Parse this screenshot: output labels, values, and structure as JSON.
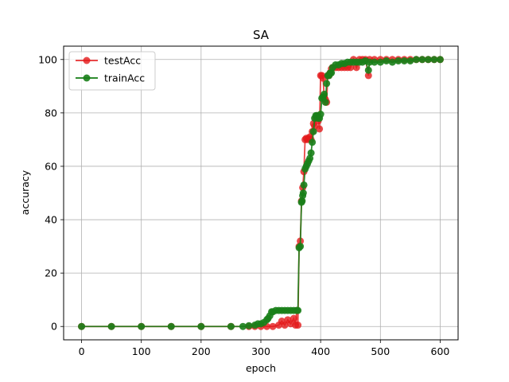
{
  "chart_data": {
    "type": "line",
    "title": "SA",
    "xlabel": "epoch",
    "ylabel": "accuracy",
    "xlim": [
      -30,
      630
    ],
    "ylim": [
      -5,
      105
    ],
    "xticks": [
      0,
      100,
      200,
      300,
      400,
      500,
      600
    ],
    "yticks": [
      0,
      20,
      40,
      60,
      80,
      100
    ],
    "grid": true,
    "legend_position": "top-left",
    "series": [
      {
        "name": "testAcc",
        "color": "#e41a1c",
        "alpha": 0.8,
        "marker": "circle",
        "points": [
          [
            0,
            0
          ],
          [
            50,
            0
          ],
          [
            100,
            0
          ],
          [
            150,
            0
          ],
          [
            200,
            0
          ],
          [
            250,
            0
          ],
          [
            280,
            0
          ],
          [
            290,
            0
          ],
          [
            300,
            0
          ],
          [
            310,
            0
          ],
          [
            320,
            0
          ],
          [
            330,
            0.5
          ],
          [
            335,
            2
          ],
          [
            340,
            0.5
          ],
          [
            345,
            2.5
          ],
          [
            350,
            1
          ],
          [
            355,
            3
          ],
          [
            358,
            0.5
          ],
          [
            360,
            6
          ],
          [
            362,
            0.5
          ],
          [
            364,
            30
          ],
          [
            366,
            32
          ],
          [
            368,
            47
          ],
          [
            370,
            52
          ],
          [
            372,
            58
          ],
          [
            374,
            70
          ],
          [
            376,
            70.5
          ],
          [
            378,
            70
          ],
          [
            380,
            70.5
          ],
          [
            382,
            71
          ],
          [
            384,
            70
          ],
          [
            386,
            73
          ],
          [
            388,
            76
          ],
          [
            390,
            75
          ],
          [
            392,
            78
          ],
          [
            394,
            79
          ],
          [
            396,
            77
          ],
          [
            398,
            74
          ],
          [
            400,
            94
          ],
          [
            402,
            94
          ],
          [
            404,
            93
          ],
          [
            406,
            86
          ],
          [
            408,
            85
          ],
          [
            410,
            84
          ],
          [
            412,
            94
          ],
          [
            414,
            94
          ],
          [
            416,
            95
          ],
          [
            418,
            96.5
          ],
          [
            420,
            97
          ],
          [
            425,
            97
          ],
          [
            430,
            97
          ],
          [
            435,
            97
          ],
          [
            440,
            97
          ],
          [
            445,
            97
          ],
          [
            450,
            97
          ],
          [
            455,
            100
          ],
          [
            460,
            97
          ],
          [
            465,
            100
          ],
          [
            470,
            100
          ],
          [
            475,
            100
          ],
          [
            480,
            94
          ],
          [
            482,
            100
          ],
          [
            490,
            100
          ],
          [
            500,
            100
          ],
          [
            510,
            100
          ],
          [
            520,
            100
          ],
          [
            530,
            100
          ],
          [
            540,
            100
          ],
          [
            550,
            100
          ],
          [
            560,
            100
          ],
          [
            570,
            100
          ],
          [
            580,
            100
          ],
          [
            590,
            100
          ],
          [
            600,
            100
          ]
        ]
      },
      {
        "name": "trainAcc",
        "color": "#1a7f1a",
        "alpha": 0.9,
        "marker": "circle",
        "points": [
          [
            0,
            0
          ],
          [
            50,
            0
          ],
          [
            100,
            0
          ],
          [
            150,
            0
          ],
          [
            200,
            0
          ],
          [
            250,
            0
          ],
          [
            270,
            0
          ],
          [
            280,
            0.3
          ],
          [
            290,
            0.5
          ],
          [
            295,
            1
          ],
          [
            300,
            1
          ],
          [
            305,
            1.5
          ],
          [
            310,
            2.5
          ],
          [
            312,
            3
          ],
          [
            315,
            4
          ],
          [
            318,
            5.5
          ],
          [
            320,
            5.5
          ],
          [
            325,
            6
          ],
          [
            330,
            6
          ],
          [
            335,
            6
          ],
          [
            340,
            6
          ],
          [
            345,
            6
          ],
          [
            350,
            6
          ],
          [
            355,
            6
          ],
          [
            360,
            6
          ],
          [
            362,
            6
          ],
          [
            364,
            29.5
          ],
          [
            366,
            30
          ],
          [
            368,
            46.5
          ],
          [
            369,
            47
          ],
          [
            370,
            49
          ],
          [
            371,
            50
          ],
          [
            372,
            53
          ],
          [
            374,
            59
          ],
          [
            376,
            60
          ],
          [
            378,
            61
          ],
          [
            380,
            62
          ],
          [
            382,
            63
          ],
          [
            384,
            65
          ],
          [
            386,
            69
          ],
          [
            388,
            73
          ],
          [
            390,
            78
          ],
          [
            392,
            79
          ],
          [
            394,
            79
          ],
          [
            396,
            78
          ],
          [
            398,
            78
          ],
          [
            400,
            79.5
          ],
          [
            402,
            85.5
          ],
          [
            404,
            86
          ],
          [
            406,
            87
          ],
          [
            408,
            84
          ],
          [
            410,
            91
          ],
          [
            412,
            94
          ],
          [
            414,
            94
          ],
          [
            416,
            95
          ],
          [
            418,
            95
          ],
          [
            420,
            97
          ],
          [
            425,
            98
          ],
          [
            430,
            98
          ],
          [
            435,
            98.5
          ],
          [
            440,
            98.5
          ],
          [
            445,
            99
          ],
          [
            450,
            99
          ],
          [
            455,
            99
          ],
          [
            460,
            99
          ],
          [
            465,
            99
          ],
          [
            470,
            99
          ],
          [
            475,
            99.5
          ],
          [
            480,
            96
          ],
          [
            482,
            99
          ],
          [
            490,
            99
          ],
          [
            500,
            99
          ],
          [
            510,
            99.5
          ],
          [
            520,
            99
          ],
          [
            530,
            99.5
          ],
          [
            540,
            99.5
          ],
          [
            550,
            99.5
          ],
          [
            560,
            100
          ],
          [
            570,
            100
          ],
          [
            580,
            100
          ],
          [
            590,
            100
          ],
          [
            600,
            100
          ]
        ]
      }
    ]
  }
}
